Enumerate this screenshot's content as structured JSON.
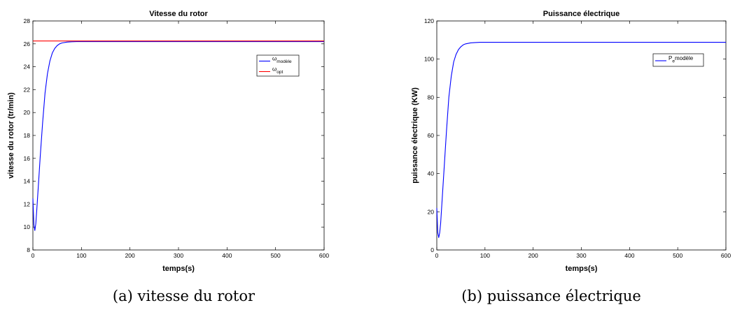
{
  "chart_data": [
    {
      "type": "line",
      "title": "Vitesse du rotor",
      "xlabel": "temps(s)",
      "ylabel": "vitesse du rotor (tr/min)",
      "xlim": [
        0,
        600
      ],
      "ylim": [
        8,
        28
      ],
      "xticks": [
        "0",
        "100",
        "200",
        "300",
        "400",
        "500",
        "600"
      ],
      "yticks": [
        "8",
        "10",
        "12",
        "14",
        "16",
        "18",
        "20",
        "22",
        "24",
        "26",
        "28"
      ],
      "grid": false,
      "legend_position": "top-right",
      "series": [
        {
          "legend_base": "ω",
          "legend_sub": "modèle",
          "color": "#0000ff",
          "x": [
            0,
            2,
            4,
            6,
            8,
            10,
            12,
            15,
            18,
            20,
            25,
            30,
            35,
            40,
            45,
            50,
            55,
            60,
            70,
            80,
            90,
            100,
            600
          ],
          "y": [
            12.5,
            10.2,
            9.7,
            10.3,
            11.5,
            12.8,
            14.1,
            16.1,
            17.9,
            19.1,
            21.7,
            23.4,
            24.5,
            25.2,
            25.6,
            25.85,
            26.0,
            26.08,
            26.15,
            26.18,
            26.2,
            26.2,
            26.2
          ]
        },
        {
          "legend_base": "ω",
          "legend_sub": "opt",
          "color": "#ff0000",
          "x": [
            0,
            600
          ],
          "y": [
            26.25,
            26.25
          ]
        }
      ]
    },
    {
      "type": "line",
      "title": "Puissance électrique",
      "xlabel": "temps(s)",
      "ylabel": "puissance électrique (KW)",
      "xlim": [
        0,
        600
      ],
      "ylim": [
        0,
        120
      ],
      "xticks": [
        "0",
        "100",
        "200",
        "300",
        "400",
        "500",
        "600"
      ],
      "yticks": [
        "0",
        "20",
        "40",
        "60",
        "80",
        "100",
        "120"
      ],
      "grid": false,
      "legend_position": "top-right",
      "series": [
        {
          "legend_base": "P",
          "legend_sub": "e",
          "legend_suffix": "modèle",
          "color": "#0000ff",
          "x": [
            0,
            2,
            4,
            6,
            8,
            10,
            12,
            15,
            18,
            20,
            25,
            30,
            35,
            40,
            45,
            50,
            55,
            60,
            70,
            80,
            90,
            100,
            600
          ],
          "y": [
            22,
            9,
            6.5,
            9,
            14,
            22,
            30,
            42,
            54,
            62,
            80,
            91,
            98.5,
            102.5,
            105,
            106.5,
            107.5,
            108,
            108.5,
            108.7,
            108.8,
            108.8,
            108.8
          ]
        }
      ]
    }
  ],
  "captions": [
    "(a) vitesse du rotor",
    "(b) puissance électrique"
  ]
}
